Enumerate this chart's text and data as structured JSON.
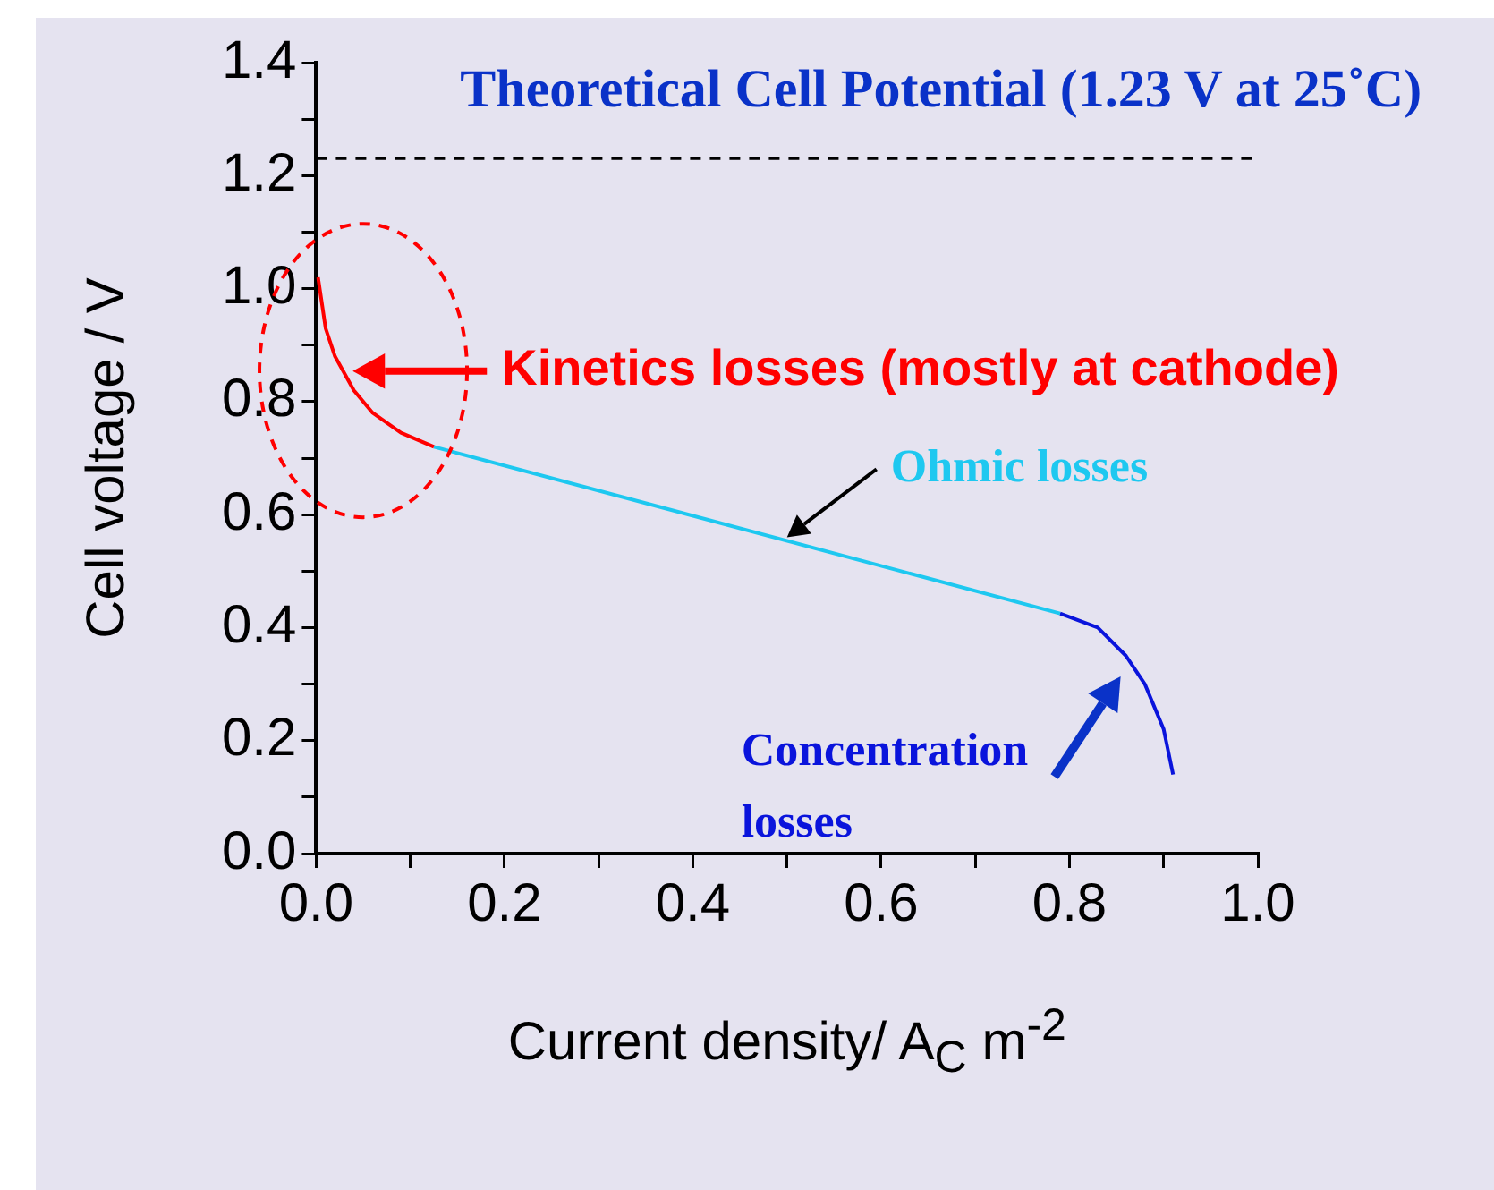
{
  "chart_data": {
    "type": "line",
    "xlabel": "Current density/ A$_{C}$ m$^{-2}$",
    "ylabel": "Cell voltage / V",
    "xlim": [
      0,
      1.0
    ],
    "ylim": [
      0,
      1.4
    ],
    "xticks": [
      {
        "value": 0,
        "label": "0.0"
      },
      {
        "value": 0.1,
        "label": null
      },
      0.2,
      {
        "value": 0.3,
        "label": null
      },
      0.4,
      {
        "value": 0.5,
        "label": null
      },
      0.6,
      {
        "value": 0.7,
        "label": null
      },
      0.8,
      {
        "value": 0.9,
        "label": null
      },
      {
        "value": 1,
        "label": "1.0"
      }
    ],
    "yticks": [
      {
        "value": 0,
        "label": "0.0"
      },
      {
        "value": 0.1,
        "label": null
      },
      0.2,
      {
        "value": 0.3,
        "label": null
      },
      0.4,
      {
        "value": 0.5,
        "label": null
      },
      0.6,
      {
        "value": 0.7,
        "label": null
      },
      0.8,
      {
        "value": 0.9,
        "label": null
      },
      {
        "value": 1,
        "label": "1.0"
      },
      {
        "value": 1.1,
        "label": null
      },
      1.2,
      {
        "value": 1.3,
        "label": null
      },
      1.4
    ],
    "series": [
      {
        "color": "#ff0000",
        "x": [
          0.002,
          0.01,
          0.02,
          0.04,
          0.06,
          0.09,
          0.125
        ],
        "values": [
          1.02,
          0.93,
          0.88,
          0.82,
          0.78,
          0.745,
          0.72
        ]
      },
      {
        "color": "#1ec8f0",
        "x": [
          0.125,
          0.79
        ],
        "values": [
          0.72,
          0.425
        ]
      },
      {
        "color": "#0a14dc",
        "x": [
          0.79,
          0.83,
          0.86,
          0.88,
          0.9,
          0.91
        ],
        "values": [
          0.425,
          0.4,
          0.35,
          0.3,
          0.22,
          0.14
        ]
      }
    ],
    "ref_lines": [
      {
        "axis": "y",
        "value": 1.23,
        "label": "Theoretical Cell Potential (1.23 V at 25˚C)",
        "color": "#000000",
        "line_style": "dashed"
      }
    ],
    "annotations": [
      "Kinetics losses (mostly at cathode)",
      {
        "text": "Ohmic losses",
        "x": 0.5,
        "y": 0.56
      },
      {
        "text": "Concentration losses",
        "x": 0.86,
        "y": 0.32
      }
    ],
    "grid": false,
    "legend": false,
    "marker": "none",
    "line_style": "solid"
  }
}
